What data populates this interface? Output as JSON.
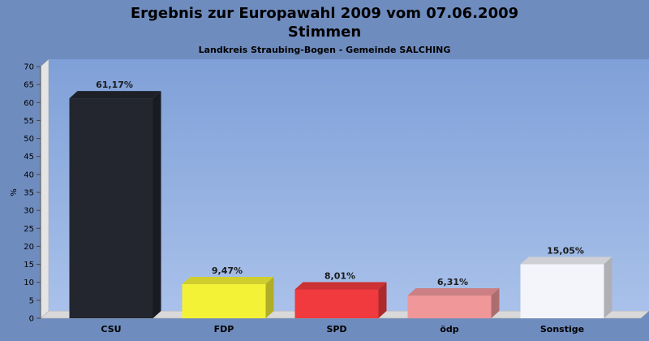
{
  "chart_data": {
    "type": "bar",
    "title": "Ergebnis zur Europawahl 2009 vom 07.06.2009",
    "title2": "Stimmen",
    "subtitle": "Landkreis Straubing-Bogen - Gemeinde SALCHING",
    "ylabel": "%",
    "xlabel": "",
    "ylim": [
      0,
      70
    ],
    "yticks": [
      0,
      5,
      10,
      15,
      20,
      25,
      30,
      35,
      40,
      45,
      50,
      55,
      60,
      65,
      70
    ],
    "grid": false,
    "categories": [
      "CSU",
      "FDP",
      "SPD",
      "ödp",
      "Sonstige"
    ],
    "values": [
      61.17,
      9.47,
      8.01,
      6.31,
      15.05
    ],
    "value_labels": [
      "61,17%",
      "9,47%",
      "8,01%",
      "6,31%",
      "15,05%"
    ],
    "colors": [
      "#23262f",
      "#f4f236",
      "#f03a3d",
      "#f0979a",
      "#f3f5fb"
    ],
    "background_color": "#6f8cbf"
  }
}
